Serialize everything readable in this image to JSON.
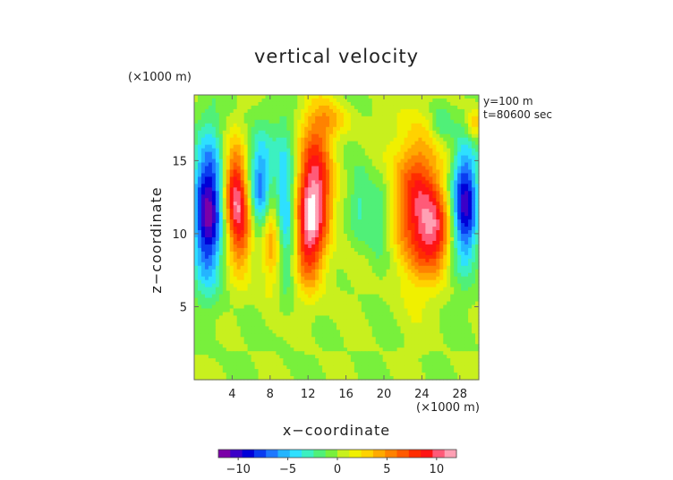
{
  "chart_data": {
    "type": "heatmap",
    "title": "vertical velocity",
    "xlabel": "x−coordinate",
    "ylabel": "z−coordinate",
    "x_unit": "(×1000 m)",
    "y_unit": "(×1000 m)",
    "annotations": [
      "y=100 m",
      "t=80600 sec"
    ],
    "xlim": [
      0,
      30
    ],
    "ylim": [
      0,
      19.5
    ],
    "x_ticks": [
      4,
      8,
      12,
      16,
      20,
      24,
      28
    ],
    "x_tick_labels": [
      "4",
      "8",
      "12",
      "16",
      "20",
      "24",
      "28"
    ],
    "y_ticks": [
      5,
      10,
      15
    ],
    "y_tick_labels": [
      "5",
      "10",
      "15"
    ],
    "colorbar": {
      "range": [
        -12,
        12
      ],
      "ticks": [
        -10,
        -5,
        0,
        5,
        10
      ],
      "tick_labels": [
        "−10",
        "−5",
        "0",
        "5",
        "10"
      ],
      "colors": [
        "#7b00a8",
        "#3b00c8",
        "#0000d8",
        "#0a3cf0",
        "#1e78ff",
        "#24b4ff",
        "#2ee0ff",
        "#3cf0c0",
        "#50f078",
        "#78f03c",
        "#c8f01e",
        "#f0f000",
        "#ffd200",
        "#ffaa00",
        "#ff8200",
        "#ff5a00",
        "#ff2d00",
        "#ff1414",
        "#ff5a78",
        "#ffa0b4"
      ]
    },
    "cells": [
      {
        "x": 1.5,
        "z": 11.5,
        "sx": 1.1,
        "sz": 3.4,
        "amp": -11
      },
      {
        "x": 4.2,
        "z": 13.2,
        "sx": 0.8,
        "sz": 2.2,
        "amp": 7
      },
      {
        "x": 5.0,
        "z": 10.6,
        "sx": 1.0,
        "sz": 2.4,
        "amp": 7
      },
      {
        "x": 7.0,
        "z": 13.0,
        "sx": 0.9,
        "sz": 2.6,
        "amp": -8
      },
      {
        "x": 8.2,
        "z": 10.0,
        "sx": 0.9,
        "sz": 2.5,
        "amp": 7
      },
      {
        "x": 9.5,
        "z": 11.5,
        "sx": 0.8,
        "sz": 3.5,
        "amp": -7
      },
      {
        "x": 12.8,
        "z": 13.0,
        "sx": 1.3,
        "sz": 3.2,
        "amp": 10
      },
      {
        "x": 12.0,
        "z": 9.5,
        "sx": 1.0,
        "sz": 2.5,
        "amp": 6
      },
      {
        "x": 17.5,
        "z": 12.0,
        "sx": 0.8,
        "sz": 1.8,
        "amp": -3
      },
      {
        "x": 19.5,
        "z": 11.0,
        "sx": 0.8,
        "sz": 2.0,
        "amp": -3
      },
      {
        "x": 23.5,
        "z": 12.0,
        "sx": 1.8,
        "sz": 3.4,
        "amp": 9
      },
      {
        "x": 25.5,
        "z": 10.0,
        "sx": 1.2,
        "sz": 1.8,
        "amp": 6
      },
      {
        "x": 28.5,
        "z": 12.0,
        "sx": 1.0,
        "sz": 2.8,
        "amp": -10
      },
      {
        "x": 26.0,
        "z": 17.5,
        "sx": 0.8,
        "sz": 1.0,
        "amp": -3
      },
      {
        "x": 14.5,
        "z": 17.8,
        "sx": 1.5,
        "sz": 0.9,
        "amp": 3
      },
      {
        "x": 29.5,
        "z": 17.5,
        "sx": 0.6,
        "sz": 0.8,
        "amp": 4
      }
    ]
  }
}
